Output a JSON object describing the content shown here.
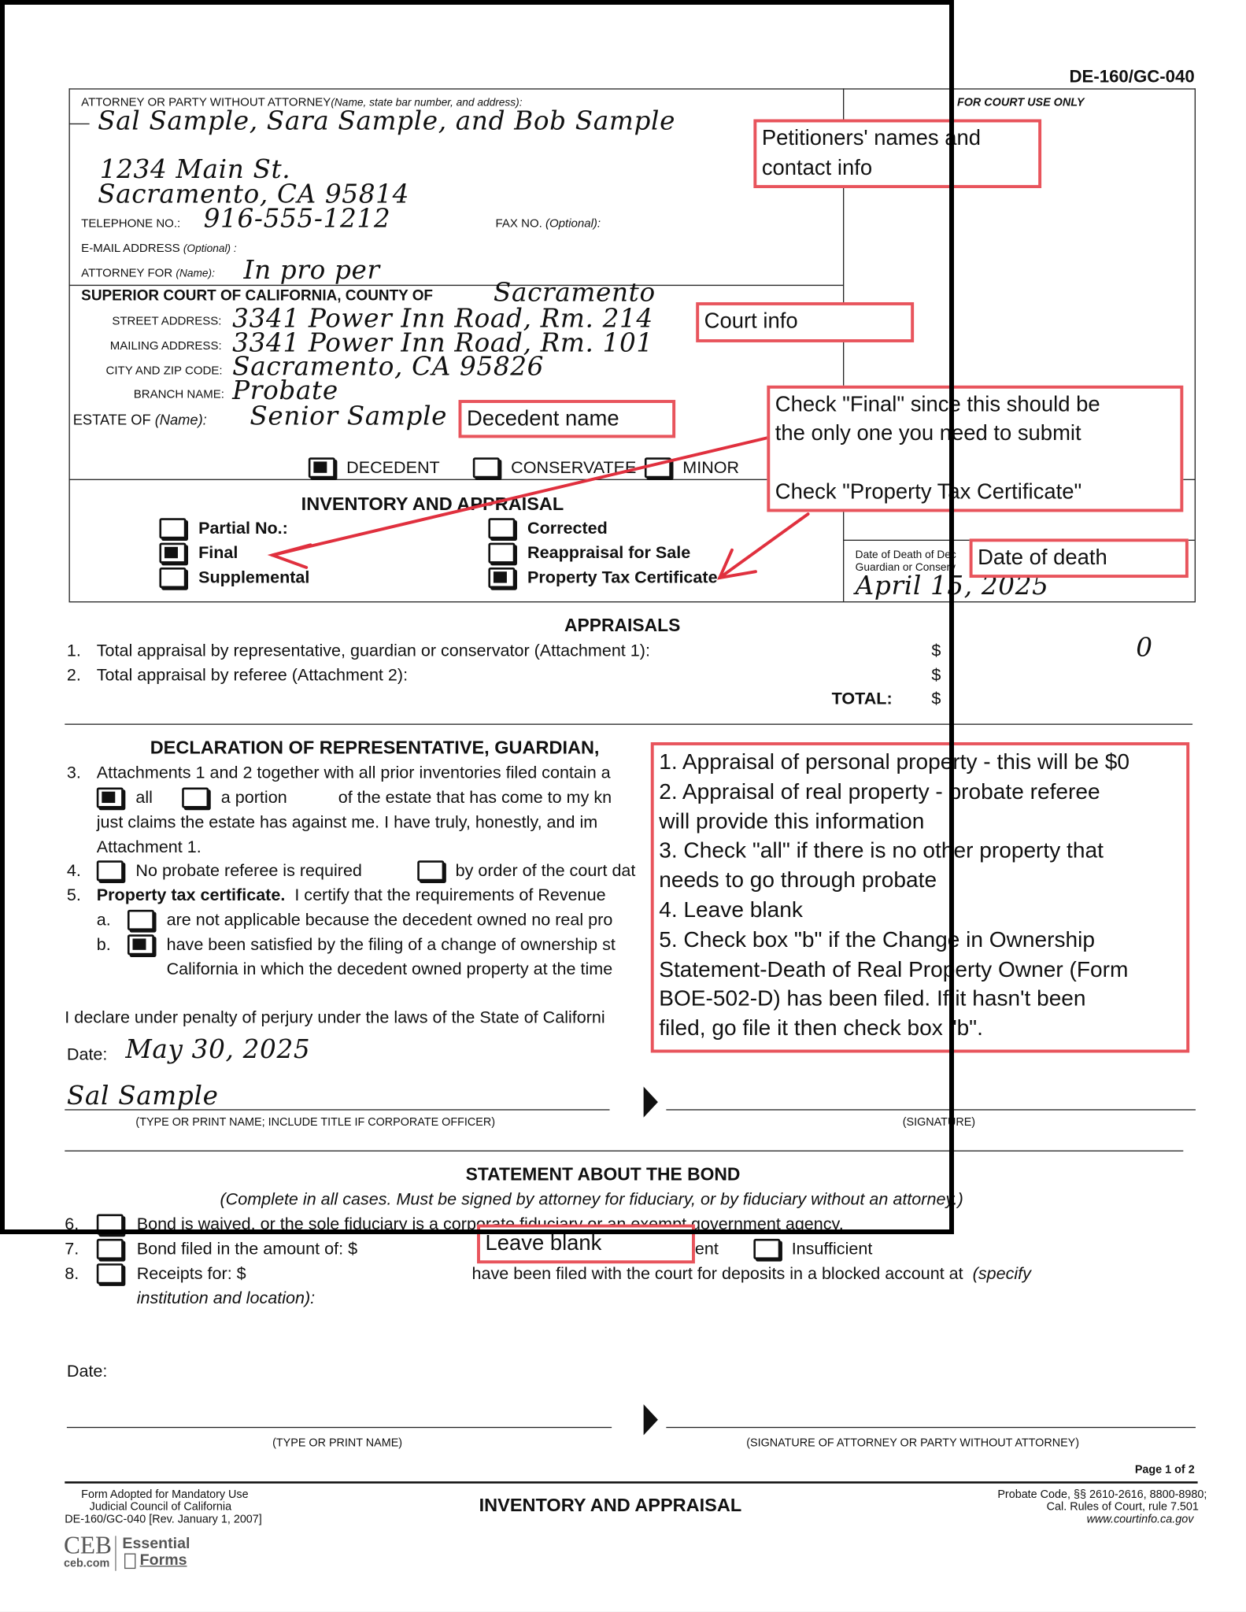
{
  "form_id": "DE-160/GC-040",
  "court_use": "FOR COURT USE ONLY",
  "attorney": {
    "label": "ATTORNEY OR PARTY WITHOUT ATTORNEY",
    "label_hint": "(Name, state bar number, and address):",
    "names": "Sal Sample, Sara Sample, and Bob Sample",
    "address1": "1234 Main St.",
    "address2": "Sacramento, CA 95814",
    "tel_label": "TELEPHONE NO.:",
    "tel": "916-555-1212",
    "fax_label": "FAX NO.",
    "fax_hint": "(Optional):",
    "email_label": "E-MAIL ADDRESS",
    "email_hint": "(Optional) :",
    "for_label": "ATTORNEY FOR",
    "for_hint": "(Name):",
    "for_value": "In pro per"
  },
  "court": {
    "label": "SUPERIOR COURT OF CALIFORNIA, COUNTY OF",
    "county": "Sacramento",
    "street_label": "STREET ADDRESS:",
    "street": "3341 Power Inn Road, Rm. 214",
    "mailing_label": "MAILING ADDRESS:",
    "mailing": "3341 Power Inn Road, Rm. 101",
    "city_label": "CITY AND ZIP CODE:",
    "city": "Sacramento, CA 95826",
    "branch_label": "BRANCH NAME:",
    "branch": "Probate"
  },
  "estate": {
    "label": "ESTATE OF",
    "hint": "(Name):",
    "name": "Senior Sample",
    "types": [
      {
        "label": "DECEDENT",
        "checked": true
      },
      {
        "label": "CONSERVATEE",
        "checked": false
      },
      {
        "label": "MINOR",
        "checked": false
      }
    ]
  },
  "inventory": {
    "title": "INVENTORY AND APPRAISAL",
    "left": [
      {
        "label": "Partial No.:",
        "checked": false
      },
      {
        "label": "Final",
        "checked": true
      },
      {
        "label": "Supplemental",
        "checked": false
      }
    ],
    "right": [
      {
        "label": "Corrected",
        "checked": false
      },
      {
        "label": "Reappraisal for Sale",
        "checked": false
      },
      {
        "label": "Property Tax Certificate",
        "checked": true
      }
    ]
  },
  "death": {
    "label1": "Date of Death of Dec",
    "label2": "Guardian or Conserv",
    "date": "April 15, 2025"
  },
  "appraisals": {
    "title": "APPRAISALS",
    "items": [
      {
        "num": "1.",
        "text": "Total appraisal by representative, guardian or conservator (Attachment 1):",
        "dollar": "$",
        "value": "0"
      },
      {
        "num": "2.",
        "text": "Total appraisal by referee (Attachment 2):",
        "dollar": "$",
        "value": ""
      }
    ],
    "total_label": "TOTAL:",
    "total_dollar": "$"
  },
  "declaration": {
    "title": "DECLARATION OF REPRESENTATIVE, GUARDIAN,",
    "i3": "3.",
    "i3a": "Attachments 1 and 2 together with all prior inventories filed contain a",
    "all": "all",
    "portion": "a portion",
    "i3b": "of the estate that has come to my kn",
    "i3c": "just claims the estate has against me.  I have truly, honestly, and im",
    "i3d": "Attachment 1.",
    "i4": "4.",
    "i4a": "No probate referee is required",
    "i4b": "by order of the court dat",
    "i5": "5.",
    "i5bold": "Property tax certificate.",
    "i5a": "I certify that the requirements of Revenue",
    "a": "a.",
    "a_text": "are not applicable because the decedent owned no real pro",
    "b": "b.",
    "b_text": "have been satisfied by the filing of a change of ownership st",
    "b_text2": "California in which the decedent owned property at the time",
    "perjury": "I declare under penalty of perjury under the laws of the State of Californi",
    "date_label": "Date:",
    "date": "May 30, 2025",
    "name": "Sal Sample",
    "name_caption": "(TYPE OR PRINT NAME; INCLUDE TITLE IF CORPORATE OFFICER)",
    "sig_caption": "(SIGNATURE)"
  },
  "bond": {
    "title": "STATEMENT ABOUT THE BOND",
    "subtitle": "(Complete in all cases. Must be signed by attorney for fiduciary, or by fiduciary without an attorney.)",
    "i6": "6.",
    "i6t": "Bond is waived, or the sole fiduciary is a corporate fiduciary or an exempt government agency.",
    "i7": "7.",
    "i7t": "Bond filed in the amount of: $",
    "i7s": "ent",
    "i7i": "Insufficient",
    "i8": "8.",
    "i8t": "Receipts for: $",
    "i8b": "have been filed with the court for deposits in a blocked account at",
    "i8c": "(specify",
    "i8d": "institution and location):",
    "date_label": "Date:",
    "name_caption": "(TYPE OR PRINT NAME)",
    "sig_caption": "(SIGNATURE OF ATTORNEY OR PARTY WITHOUT ATTORNEY)"
  },
  "footer": {
    "page": "Page 1 of 2",
    "left1": "Form Adopted for Mandatory Use",
    "left2": "Judicial Council of California",
    "left3": "DE-160/GC-040  [Rev. January 1, 2007]",
    "title": "INVENTORY AND APPRAISAL",
    "right1": "Probate Code, §§ 2610-2616, 8800-8980;",
    "right2": "Cal. Rules of Court, rule 7.501",
    "right3": "www.courtinfo.ca.gov",
    "logo1": "CEB",
    "logo2": "ceb.com",
    "logo3": "Essential",
    "logo4": "Forms"
  },
  "notes": {
    "petitioners": "Petitioners' names and\ncontact info",
    "court": "Court info",
    "decedent": "Decedent name",
    "final": "Check \"Final\" since this should be\nthe only one you need to submit\n\nCheck \"Property Tax Certificate\"",
    "death": "Date of death",
    "big": "1. Appraisal of personal property - this will be $0\n2. Appraisal of real property - probate referee\nwill provide this information\n3. Check \"all\" if there is no other property that\nneeds to go through probate\n4. Leave blank\n5. Check box \"b\" if the Change in Ownership\nStatement-Death of Real Property Owner (Form\nBOE-502-D) has been filed. If it hasn't been\nfiled, go file it then check box \"b\".",
    "bond": "Leave blank"
  },
  "colors": {
    "annotation": "#e8545c",
    "arrow": "#e0303e"
  }
}
